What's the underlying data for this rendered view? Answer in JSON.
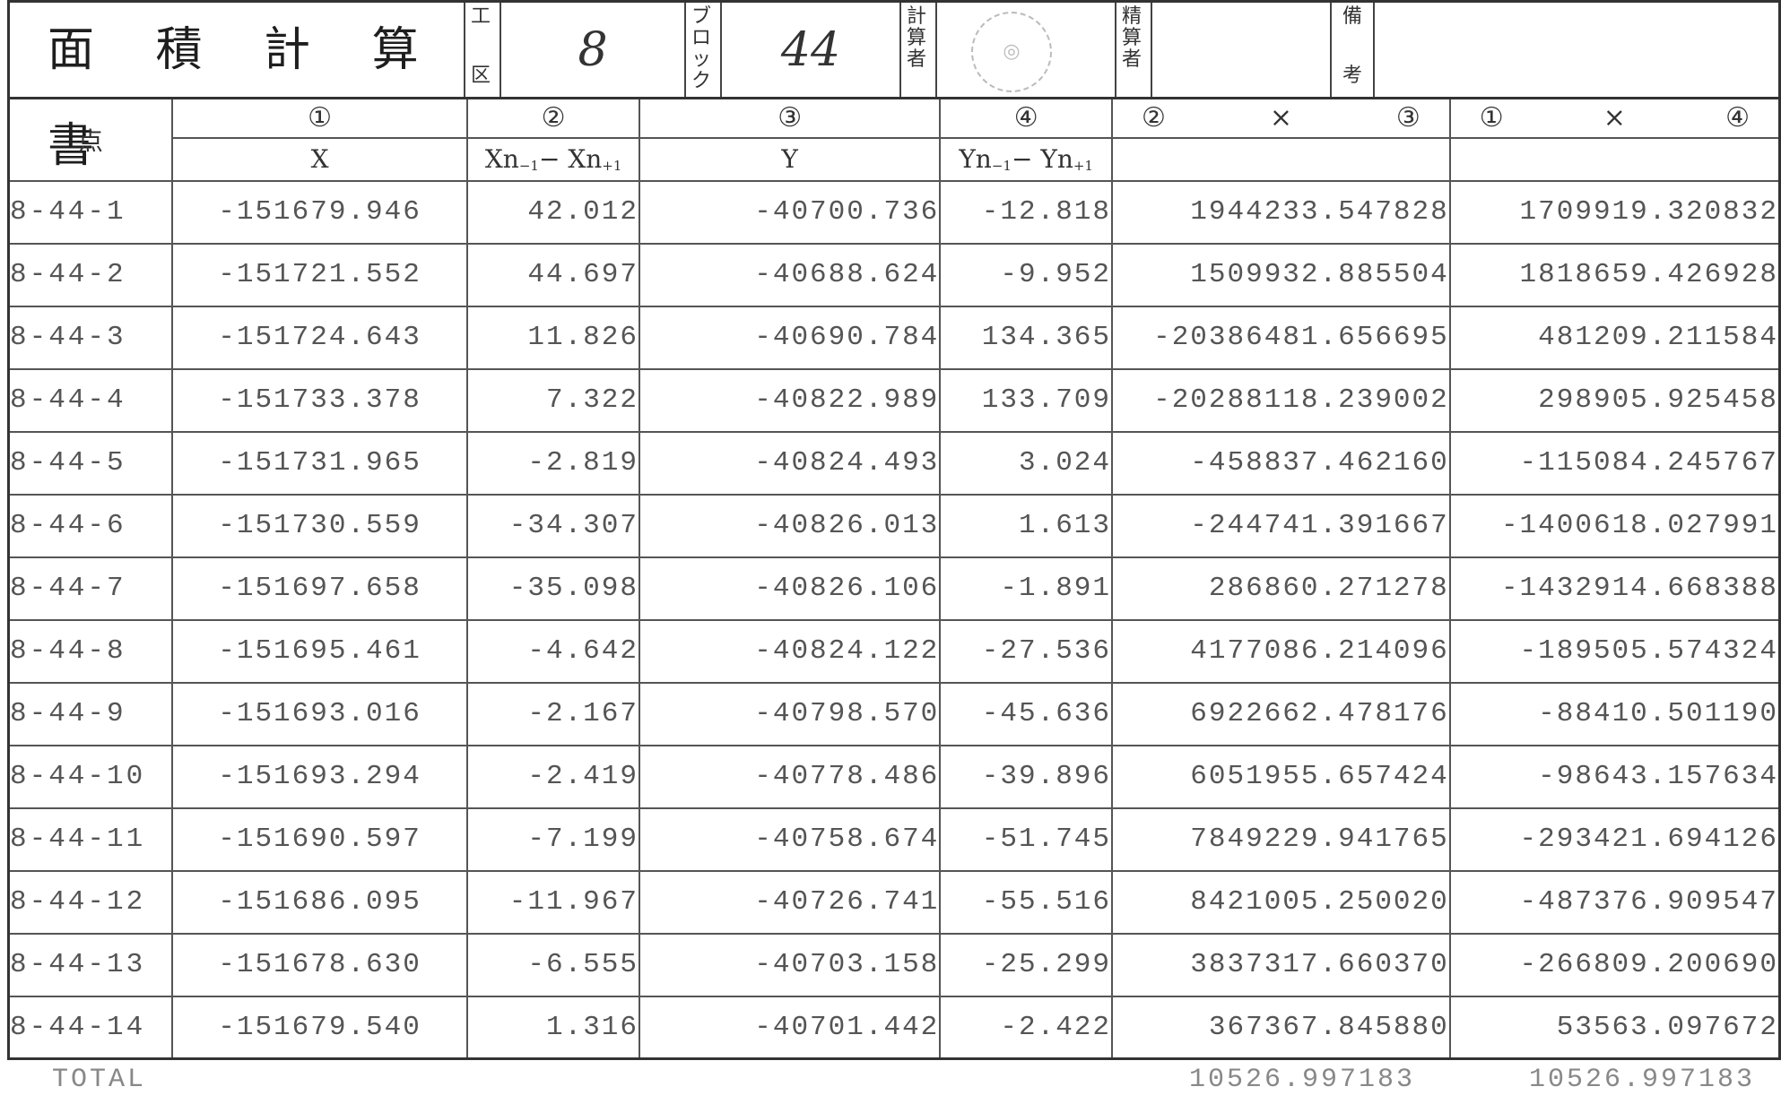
{
  "header": {
    "title": "面 積 計 算 書",
    "ku_label": [
      "工",
      "区"
    ],
    "ku_value": "8",
    "block_label": [
      "ブ",
      "ロ",
      "ッ",
      "ク"
    ],
    "block_value": "44",
    "calc_label": [
      "計",
      "算",
      "者"
    ],
    "seisan_label": [
      "精",
      "算",
      "者"
    ],
    "biko_label": [
      "備",
      "考"
    ]
  },
  "table": {
    "point_header": "点",
    "col_numbers": [
      "①",
      "②",
      "③",
      "④"
    ],
    "col_x": "X",
    "col_dx": [
      "Xn",
      "−1",
      "− Xn",
      "+1"
    ],
    "col_y": "Y",
    "col_dy": [
      "Yn",
      "−1",
      "− Yn",
      "+1"
    ],
    "col_p23": [
      "②",
      "×",
      "③"
    ],
    "col_p14": [
      "①",
      "×",
      "④"
    ],
    "rows": [
      {
        "point": "8-44-1",
        "x": "-151679.946",
        "dx": "42.012",
        "y": "-40700.736",
        "dy": "-12.818",
        "p23": "1944233.547828",
        "p14": "1709919.320832"
      },
      {
        "point": "8-44-2",
        "x": "-151721.552",
        "dx": "44.697",
        "y": "-40688.624",
        "dy": "-9.952",
        "p23": "1509932.885504",
        "p14": "1818659.426928"
      },
      {
        "point": "8-44-3",
        "x": "-151724.643",
        "dx": "11.826",
        "y": "-40690.784",
        "dy": "134.365",
        "p23": "-20386481.656695",
        "p14": "481209.211584"
      },
      {
        "point": "8-44-4",
        "x": "-151733.378",
        "dx": "7.322",
        "y": "-40822.989",
        "dy": "133.709",
        "p23": "-20288118.239002",
        "p14": "298905.925458"
      },
      {
        "point": "8-44-5",
        "x": "-151731.965",
        "dx": "-2.819",
        "y": "-40824.493",
        "dy": "3.024",
        "p23": "-458837.462160",
        "p14": "-115084.245767"
      },
      {
        "point": "8-44-6",
        "x": "-151730.559",
        "dx": "-34.307",
        "y": "-40826.013",
        "dy": "1.613",
        "p23": "-244741.391667",
        "p14": "-1400618.027991"
      },
      {
        "point": "8-44-7",
        "x": "-151697.658",
        "dx": "-35.098",
        "y": "-40826.106",
        "dy": "-1.891",
        "p23": "286860.271278",
        "p14": "-1432914.668388"
      },
      {
        "point": "8-44-8",
        "x": "-151695.461",
        "dx": "-4.642",
        "y": "-40824.122",
        "dy": "-27.536",
        "p23": "4177086.214096",
        "p14": "-189505.574324"
      },
      {
        "point": "8-44-9",
        "x": "-151693.016",
        "dx": "-2.167",
        "y": "-40798.570",
        "dy": "-45.636",
        "p23": "6922662.478176",
        "p14": "-88410.501190"
      },
      {
        "point": "8-44-10",
        "x": "-151693.294",
        "dx": "-2.419",
        "y": "-40778.486",
        "dy": "-39.896",
        "p23": "6051955.657424",
        "p14": "-98643.157634"
      },
      {
        "point": "8-44-11",
        "x": "-151690.597",
        "dx": "-7.199",
        "y": "-40758.674",
        "dy": "-51.745",
        "p23": "7849229.941765",
        "p14": "-293421.694126"
      },
      {
        "point": "8-44-12",
        "x": "-151686.095",
        "dx": "-11.967",
        "y": "-40726.741",
        "dy": "-55.516",
        "p23": "8421005.250020",
        "p14": "-487376.909547"
      },
      {
        "point": "8-44-13",
        "x": "-151678.630",
        "dx": "-6.555",
        "y": "-40703.158",
        "dy": "-25.299",
        "p23": "3837317.660370",
        "p14": "-266809.200690"
      },
      {
        "point": "8-44-14",
        "x": "-151679.540",
        "dx": "1.316",
        "y": "-40701.442",
        "dy": "-2.422",
        "p23": "367367.845880",
        "p14": "53563.097672"
      }
    ]
  },
  "totals": {
    "label": "TOTAL",
    "p23": "10526.997183",
    "p14": "10526.997183"
  }
}
